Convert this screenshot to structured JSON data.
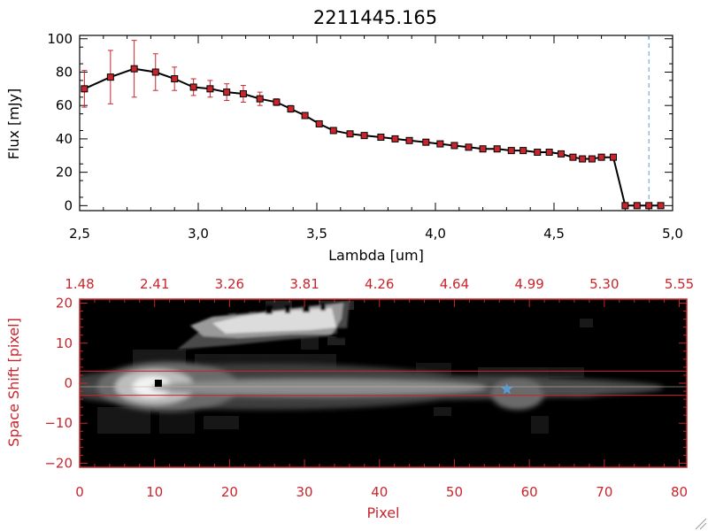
{
  "chart_data": [
    {
      "type": "line",
      "title": "2211445.165",
      "xlabel": "Lambda [um]",
      "ylabel": "Flux [mJy]",
      "xlim": [
        2.5,
        5.0
      ],
      "ylim": [
        -3,
        102
      ],
      "xticks": [
        2.5,
        3.0,
        3.5,
        4.0,
        4.5,
        5.0
      ],
      "xtick_labels": [
        "2,5",
        "3,0",
        "3,5",
        "4,0",
        "4,5",
        "5,0"
      ],
      "yticks": [
        0,
        20,
        40,
        60,
        80,
        100
      ],
      "ytick_labels": [
        "0",
        "20",
        "40",
        "60",
        "80",
        "100"
      ],
      "grid": false,
      "series": [
        {
          "x": [
            2.52,
            2.63,
            2.73,
            2.82,
            2.9,
            2.98,
            3.05,
            3.12,
            3.19,
            3.26,
            3.33,
            3.39,
            3.45,
            3.51,
            3.57,
            3.64,
            3.7,
            3.77,
            3.83,
            3.89,
            3.96,
            4.02,
            4.08,
            4.14,
            4.2,
            4.26,
            4.32,
            4.37,
            4.43,
            4.48,
            4.53,
            4.58,
            4.62,
            4.66,
            4.7,
            4.75,
            4.8,
            4.85,
            4.9,
            4.95
          ],
          "y": [
            70,
            77,
            82,
            80,
            76,
            71,
            70,
            68,
            67,
            64,
            62,
            58,
            54,
            49,
            45,
            43,
            42,
            41,
            40,
            39,
            38,
            37,
            36,
            35,
            34,
            34,
            33,
            33,
            32,
            32,
            31,
            29,
            28,
            28,
            29,
            29,
            0,
            0,
            0,
            0
          ],
          "yerr": [
            11,
            16,
            17,
            11,
            7,
            5,
            5,
            5,
            5,
            4,
            2,
            2,
            1,
            1,
            1,
            1,
            1,
            1,
            1,
            1,
            1,
            1,
            1,
            1,
            1,
            1,
            1,
            1,
            1,
            1,
            1,
            1,
            1,
            1,
            1,
            1,
            0,
            0,
            0,
            0
          ],
          "color": "#000000",
          "marker_color": "#c8262c"
        }
      ],
      "vline": {
        "x": 4.9,
        "style": "dashed",
        "color": "#5b9bd5"
      }
    },
    {
      "type": "heatmap",
      "xlabel": "Pixel",
      "ylabel": "Space Shift [pixel]",
      "xlim": [
        0,
        81
      ],
      "ylim": [
        -21,
        21
      ],
      "xticks": [
        0,
        10,
        20,
        30,
        40,
        50,
        60,
        70,
        80
      ],
      "xtick_labels": [
        "0",
        "10",
        "20",
        "30",
        "40",
        "50",
        "60",
        "70",
        "80"
      ],
      "yticks": [
        -20,
        -10,
        0,
        10,
        20
      ],
      "ytick_labels": [
        "−20",
        "−10",
        "0",
        "10",
        "20"
      ],
      "top_axis_ticks": [
        "1.48",
        "2.41",
        "3.26",
        "3.81",
        "4.26",
        "4.64",
        "4.99",
        "5.30",
        "5.55"
      ],
      "colormap": "gray",
      "extraction_lines_y": [
        3,
        -3
      ],
      "line_color": "#c8262c",
      "markers": [
        {
          "label": "source",
          "shape": "square",
          "x": 10.5,
          "y": 0,
          "color": "#000000"
        },
        {
          "label": "star",
          "shape": "star",
          "x": 57,
          "y": -1.5,
          "color": "#5b9bd5"
        }
      ]
    }
  ]
}
